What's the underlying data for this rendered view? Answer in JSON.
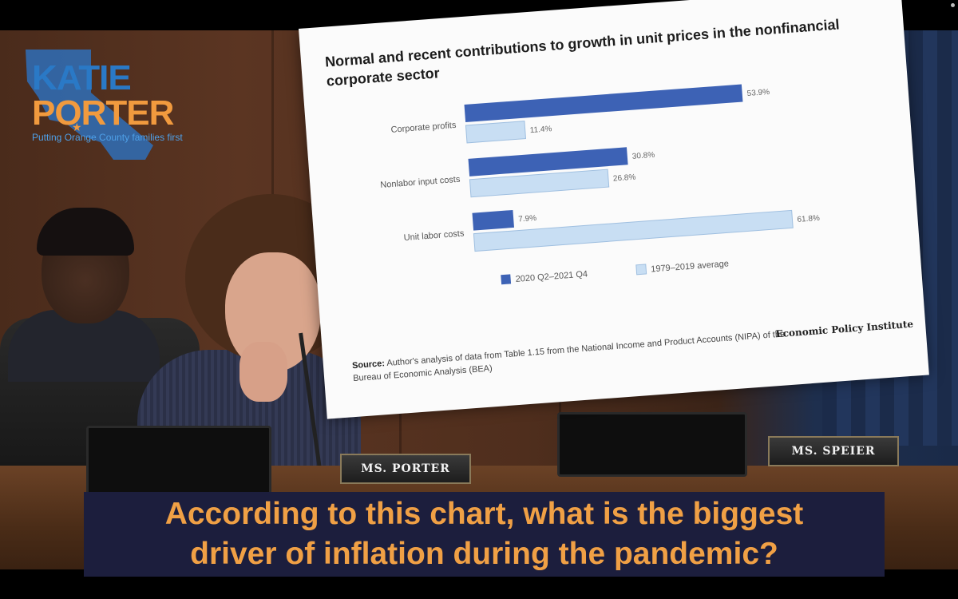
{
  "logo": {
    "line1": "KATIE",
    "line2": "PORTER",
    "tagline": "Putting Orange County families first",
    "colors": {
      "katie": "#2a79c6",
      "porter": "#f19a3e",
      "map": "#2f6fb8"
    }
  },
  "poster": {
    "title": "Normal and recent contributions to growth in unit prices in the nonfinancial corporate sector",
    "source_label": "Source:",
    "source_text": "Author's analysis of data from Table 1.15 from the National Income and Product Accounts (NIPA) of the Bureau of Economic Analysis (BEA)",
    "publisher": "Economic Policy Institute"
  },
  "chart_data": {
    "type": "bar",
    "orientation": "horizontal",
    "title": "Normal and recent contributions to growth in unit prices in the nonfinancial corporate sector",
    "categories": [
      "Corporate profits",
      "Nonlabor input costs",
      "Unit labor costs"
    ],
    "series": [
      {
        "name": "2020 Q2–2021 Q4",
        "values": [
          53.9,
          30.8,
          7.9
        ],
        "color": "#3d62b5"
      },
      {
        "name": "1979–2019 average",
        "values": [
          11.4,
          26.8,
          61.8
        ],
        "color": "#c8def3"
      }
    ],
    "value_labels": [
      [
        "53.9%",
        "30.8%",
        "7.9%"
      ],
      [
        "11.4%",
        "26.8%",
        "61.8%"
      ]
    ],
    "xlim": [
      0,
      65
    ],
    "legend": "bottom",
    "grid": false
  },
  "nameplates": {
    "porter": "MS. PORTER",
    "speier": "MS. SPEIER"
  },
  "caption": {
    "line1": "According to this chart, what is the biggest",
    "line2": "driver of inflation during the pandemic?"
  }
}
